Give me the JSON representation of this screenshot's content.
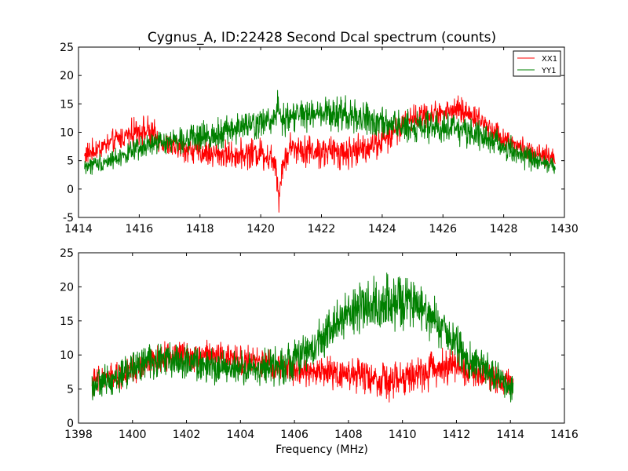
{
  "chart_data": [
    {
      "type": "line",
      "title": "Cygnus_A, ID:22428 Second Dcal spectrum (counts)",
      "xlabel": "",
      "ylabel": "",
      "xlim": [
        1414,
        1430
      ],
      "ylim": [
        -5,
        25
      ],
      "xticks": [
        1414,
        1416,
        1418,
        1420,
        1422,
        1424,
        1426,
        1428,
        1430
      ],
      "yticks": [
        -5,
        0,
        5,
        10,
        15,
        20,
        25
      ],
      "grid": false,
      "legend": {
        "position": "top-right",
        "entries": [
          "XX1",
          "YY1"
        ]
      },
      "series": [
        {
          "name": "XX1",
          "color": "#ff0000",
          "x": [
            1414.2,
            1415,
            1416,
            1416.3,
            1417,
            1418,
            1419,
            1420,
            1420.5,
            1420.6,
            1420.7,
            1421,
            1422,
            1423,
            1424,
            1425,
            1426,
            1426.5,
            1427,
            1428,
            1429,
            1429.7
          ],
          "values": [
            6,
            8,
            10.5,
            10,
            7.5,
            6.5,
            6,
            6.5,
            5,
            -2,
            4,
            7.5,
            6.5,
            6.5,
            8.5,
            12.5,
            13.5,
            14,
            13,
            9,
            6,
            5.5
          ],
          "spread": [
            1.5,
            1.5,
            1.8,
            2,
            1.5,
            1.8,
            1.8,
            2,
            2.5,
            1.5,
            2,
            2,
            2.2,
            2.2,
            2,
            1.8,
            1.6,
            1.6,
            1.6,
            1.5,
            1.5,
            1.5
          ]
        },
        {
          "name": "YY1",
          "color": "#008000",
          "x": [
            1414.2,
            1415,
            1416,
            1416.5,
            1417,
            1418,
            1419,
            1420,
            1420.5,
            1420.55,
            1420.7,
            1421,
            1422,
            1423,
            1424,
            1425,
            1426,
            1427,
            1428,
            1429,
            1429.7
          ],
          "values": [
            4,
            5,
            7,
            8,
            8.5,
            9,
            10.5,
            11.5,
            12.5,
            16,
            12,
            13,
            13,
            13,
            11.5,
            11,
            11,
            10,
            7.5,
            5,
            4
          ],
          "spread": [
            1.2,
            1.2,
            1.5,
            1.5,
            1.5,
            1.8,
            2,
            2,
            2.2,
            2.5,
            2.2,
            2.2,
            2.2,
            2.2,
            2,
            2,
            2,
            2,
            1.8,
            1.5,
            1.2
          ]
        }
      ]
    },
    {
      "type": "line",
      "title": "",
      "xlabel": "Frequency (MHz)",
      "ylabel": "",
      "xlim": [
        1398,
        1416
      ],
      "ylim": [
        0,
        25
      ],
      "xticks": [
        1398,
        1400,
        1402,
        1404,
        1406,
        1408,
        1410,
        1412,
        1414,
        1416
      ],
      "yticks": [
        0,
        5,
        10,
        15,
        20,
        25
      ],
      "grid": false,
      "series": [
        {
          "name": "XX1",
          "color": "#ff0000",
          "x": [
            1398.5,
            1399.5,
            1400.5,
            1401.5,
            1402.5,
            1403.5,
            1404.5,
            1405.5,
            1406.5,
            1407.5,
            1408.5,
            1409.5,
            1410.5,
            1411.5,
            1412,
            1413,
            1414.1
          ],
          "values": [
            6,
            7,
            8.5,
            10,
            10,
            9.5,
            9,
            8,
            7.5,
            7.5,
            7,
            6,
            7,
            8.5,
            8.5,
            7,
            6
          ],
          "spread": [
            1.5,
            1.5,
            1.5,
            1.6,
            1.6,
            1.6,
            1.6,
            1.5,
            1.5,
            1.8,
            2,
            2,
            2,
            2,
            1.8,
            1.5,
            1.5
          ]
        },
        {
          "name": "YY1",
          "color": "#008000",
          "x": [
            1398.5,
            1399.5,
            1400.5,
            1401.5,
            1402.5,
            1403.5,
            1404.5,
            1405.5,
            1406.5,
            1407.5,
            1408.5,
            1409.5,
            1410.5,
            1411.5,
            1412.5,
            1413.5,
            1414.1
          ],
          "values": [
            5.5,
            7,
            9,
            9.5,
            8.5,
            8,
            8,
            8.5,
            10.5,
            14.5,
            17,
            18,
            17,
            14,
            9,
            7,
            5
          ],
          "spread": [
            1.5,
            1.8,
            2,
            2,
            1.8,
            1.8,
            1.8,
            2,
            2.2,
            2.5,
            2.8,
            2.8,
            2.8,
            2.5,
            2,
            1.8,
            1.5
          ]
        }
      ]
    }
  ]
}
